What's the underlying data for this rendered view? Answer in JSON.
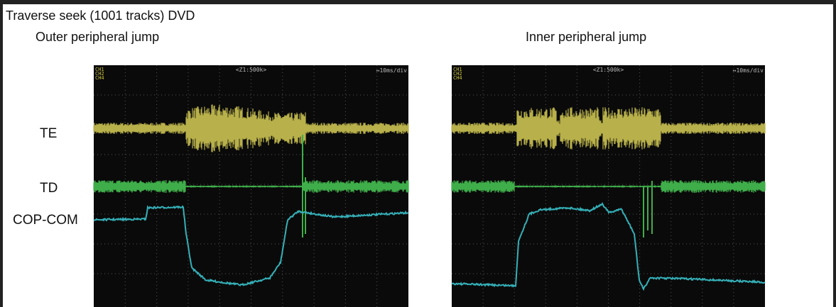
{
  "header": {
    "title": "Traverse seek (1001 tracks) DVD"
  },
  "signal_labels": [
    "TE",
    "TD",
    "COP-COM"
  ],
  "panels": [
    {
      "caption": "Outer peripheral jump",
      "scope": {
        "channels": [
          "CH1",
          "CH2",
          "CH4"
        ],
        "zoom": "<Z1:500k>",
        "timebase": "↔10ms/div"
      }
    },
    {
      "caption": "Inner peripheral jump",
      "scope": {
        "channels": [
          "CH1",
          "CH2",
          "CH4"
        ],
        "zoom": "<Z1:500k>",
        "timebase": "↔10ms/div"
      }
    }
  ]
}
